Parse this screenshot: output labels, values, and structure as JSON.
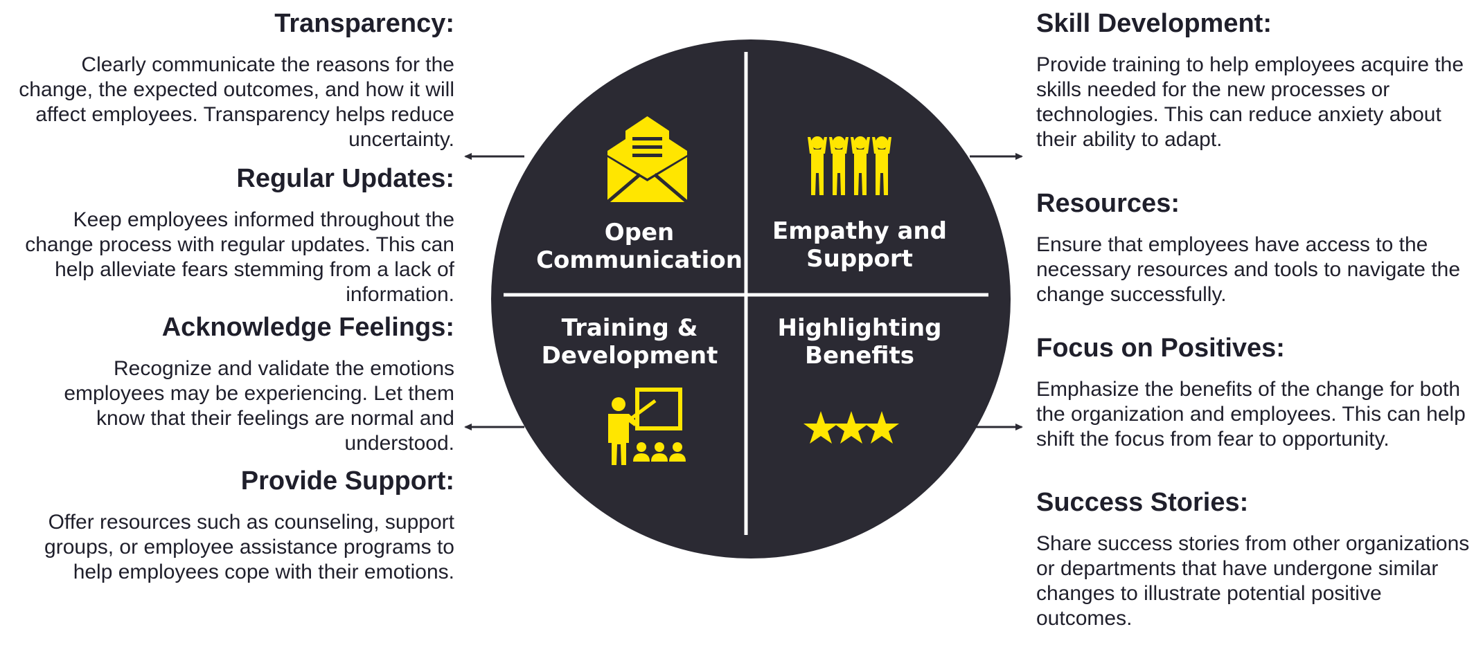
{
  "left": [
    {
      "heading": "Transparency:",
      "body": "Clearly communicate the reasons for the change, the expected outcomes, and how it will affect employees. Transparency helps reduce uncertainty."
    },
    {
      "heading": "Regular Updates:",
      "body": "Keep employees informed throughout the change process with regular updates. This can help alleviate fears stemming from a lack of information."
    },
    {
      "heading": "Acknowledge Feelings:",
      "body": "Recognize and validate the emotions employees may be experiencing. Let them know that their feelings are normal and understood."
    },
    {
      "heading": "Provide Support:",
      "body": "Offer resources such as counseling, support groups, or employee assistance programs to help employees cope with their emotions."
    }
  ],
  "right": [
    {
      "heading": "Skill Development:",
      "body": "Provide training to help employees acquire the skills needed for the new processes or technologies. This can reduce anxiety about their ability to adapt."
    },
    {
      "heading": "Resources:",
      "body": "Ensure that employees have access to the necessary resources and tools to navigate the change successfully."
    },
    {
      "heading": "Focus on Positives:",
      "body": "Emphasize the benefits of the change for both the organization and employees. This can help shift the focus from fear to opportunity."
    },
    {
      "heading": "Success Stories:",
      "body": "Share success stories from other organizations or departments that have undergone similar changes to illustrate potential positive outcomes."
    }
  ],
  "quadrants": {
    "top_left": {
      "line1": "Open",
      "line2": "Communication",
      "icon": "envelope-icon"
    },
    "top_right": {
      "line1": "Empathy and",
      "line2": "Support",
      "icon": "people-cheering-icon"
    },
    "bottom_left": {
      "line1": "Training &",
      "line2": "Development",
      "icon": "teacher-presentation-icon"
    },
    "bottom_right": {
      "line1": "Highlighting",
      "line2": "Benefits",
      "icon": "stars-icon"
    }
  },
  "colors": {
    "circle": "#2b2a33",
    "accent": "#ffe600",
    "divider": "#ffffff",
    "text": "#1f1f2b"
  }
}
